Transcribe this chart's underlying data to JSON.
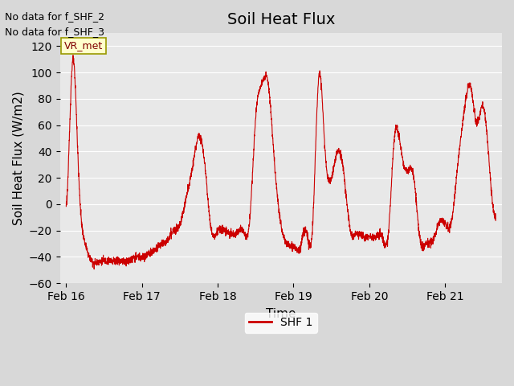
{
  "title": "Soil Heat Flux",
  "ylabel": "Soil Heat Flux (W/m2)",
  "xlabel": "Time",
  "ylim": [
    -60,
    130
  ],
  "yticks": [
    -60,
    -40,
    -20,
    0,
    20,
    40,
    60,
    80,
    100,
    120
  ],
  "xtick_labels": [
    "Feb 16",
    "Feb 17",
    "Feb 18",
    "Feb 19",
    "Feb 20",
    "Feb 21"
  ],
  "line_color": "#cc0000",
  "legend_label": "SHF 1",
  "no_data_text": [
    "No data for f_SHF_2",
    "No data for f_SHF_3"
  ],
  "vrmet_label": "VR_met",
  "bg_color": "#e8e8e8",
  "plot_bg_color": "#e8e8e8",
  "title_fontsize": 14,
  "axis_fontsize": 11,
  "tick_fontsize": 10
}
